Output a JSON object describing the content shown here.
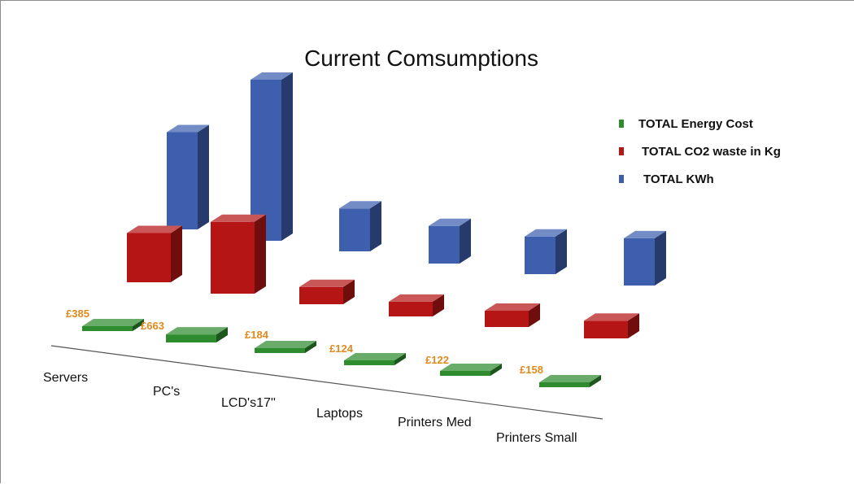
{
  "chart_data": {
    "type": "bar",
    "title": "Current Comsumptions",
    "categories": [
      "Servers",
      "PC's",
      "LCD's17''",
      "Laptops",
      "Printers Med",
      "Printers Small"
    ],
    "series": [
      {
        "name": "TOTAL Energy Cost",
        "color": "#2e8b2e",
        "values": [
          385,
          663,
          184,
          124,
          122,
          158
        ],
        "data_labels": [
          "£385",
          "£663",
          "£184",
          "£124",
          "£122",
          "£158"
        ]
      },
      {
        "name": "TOTAL CO2 waste in Kg",
        "color": "#b51515",
        "values": [
          1000,
          1460,
          350,
          300,
          330,
          360
        ]
      },
      {
        "name": "TOTAL KWh",
        "color": "#3d5fae",
        "values": [
          1810,
          3000,
          800,
          700,
          700,
          880
        ]
      }
    ],
    "grid": false,
    "legend_position": "top-right",
    "data_label_color": "#e08a1e"
  }
}
